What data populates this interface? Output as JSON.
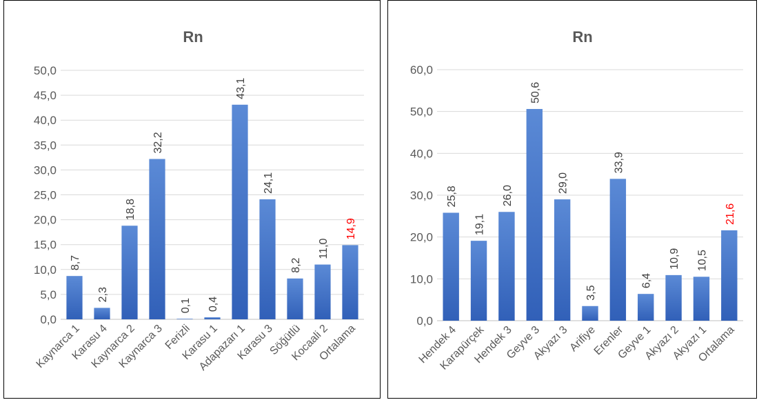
{
  "chart_data": [
    {
      "type": "bar",
      "title": "Rn",
      "xlabel": "",
      "ylabel": "",
      "categories": [
        "Kaynarca 1",
        "Karasu 4",
        "Kaynarca 2",
        "Kaynarca 3",
        "Ferizli",
        "Karasu 1",
        "Adapazarı 1",
        "Karasu 3",
        "Söğütlü",
        "Kocaali 2",
        "Ortalama"
      ],
      "values": [
        8.7,
        2.3,
        18.8,
        32.2,
        0.1,
        0.4,
        43.1,
        24.1,
        8.2,
        11.0,
        14.9
      ],
      "value_labels": [
        "8,7",
        "2,3",
        "18,8",
        "32,2",
        "0,1",
        "0,4",
        "43,1",
        "24,1",
        "8,2",
        "11,0",
        "14,9"
      ],
      "highlight_index": 10,
      "highlight_color": "#ff0000",
      "bar_color": "#4472c4",
      "ylim": [
        0,
        50
      ],
      "yticks": [
        "0,0",
        "5,0",
        "10,0",
        "15,0",
        "20,0",
        "25,0",
        "30,0",
        "35,0",
        "40,0",
        "45,0",
        "50,0"
      ],
      "grid": true,
      "legend": "none"
    },
    {
      "type": "bar",
      "title": "Rn",
      "xlabel": "",
      "ylabel": "",
      "categories": [
        "Hendek 4",
        "Karapürçek",
        "Hendek 3",
        "Geyve 3",
        "Akyazı 3",
        "Arifiye",
        "Erenler",
        "Geyve 1",
        "Akyazı 2",
        "Akyazı 1",
        "Ortalama"
      ],
      "values": [
        25.8,
        19.1,
        26.0,
        50.6,
        29.0,
        3.5,
        33.9,
        6.4,
        10.9,
        10.5,
        21.6
      ],
      "value_labels": [
        "25,8",
        "19,1",
        "26,0",
        "50,6",
        "29,0",
        "3,5",
        "33,9",
        "6,4",
        "10,9",
        "10,5",
        "21,6"
      ],
      "highlight_index": 10,
      "highlight_color": "#ff0000",
      "bar_color": "#4472c4",
      "ylim": [
        0,
        60
      ],
      "yticks": [
        "0,0",
        "10,0",
        "20,0",
        "30,0",
        "40,0",
        "50,0",
        "60,0"
      ],
      "grid": true,
      "legend": "none"
    }
  ]
}
